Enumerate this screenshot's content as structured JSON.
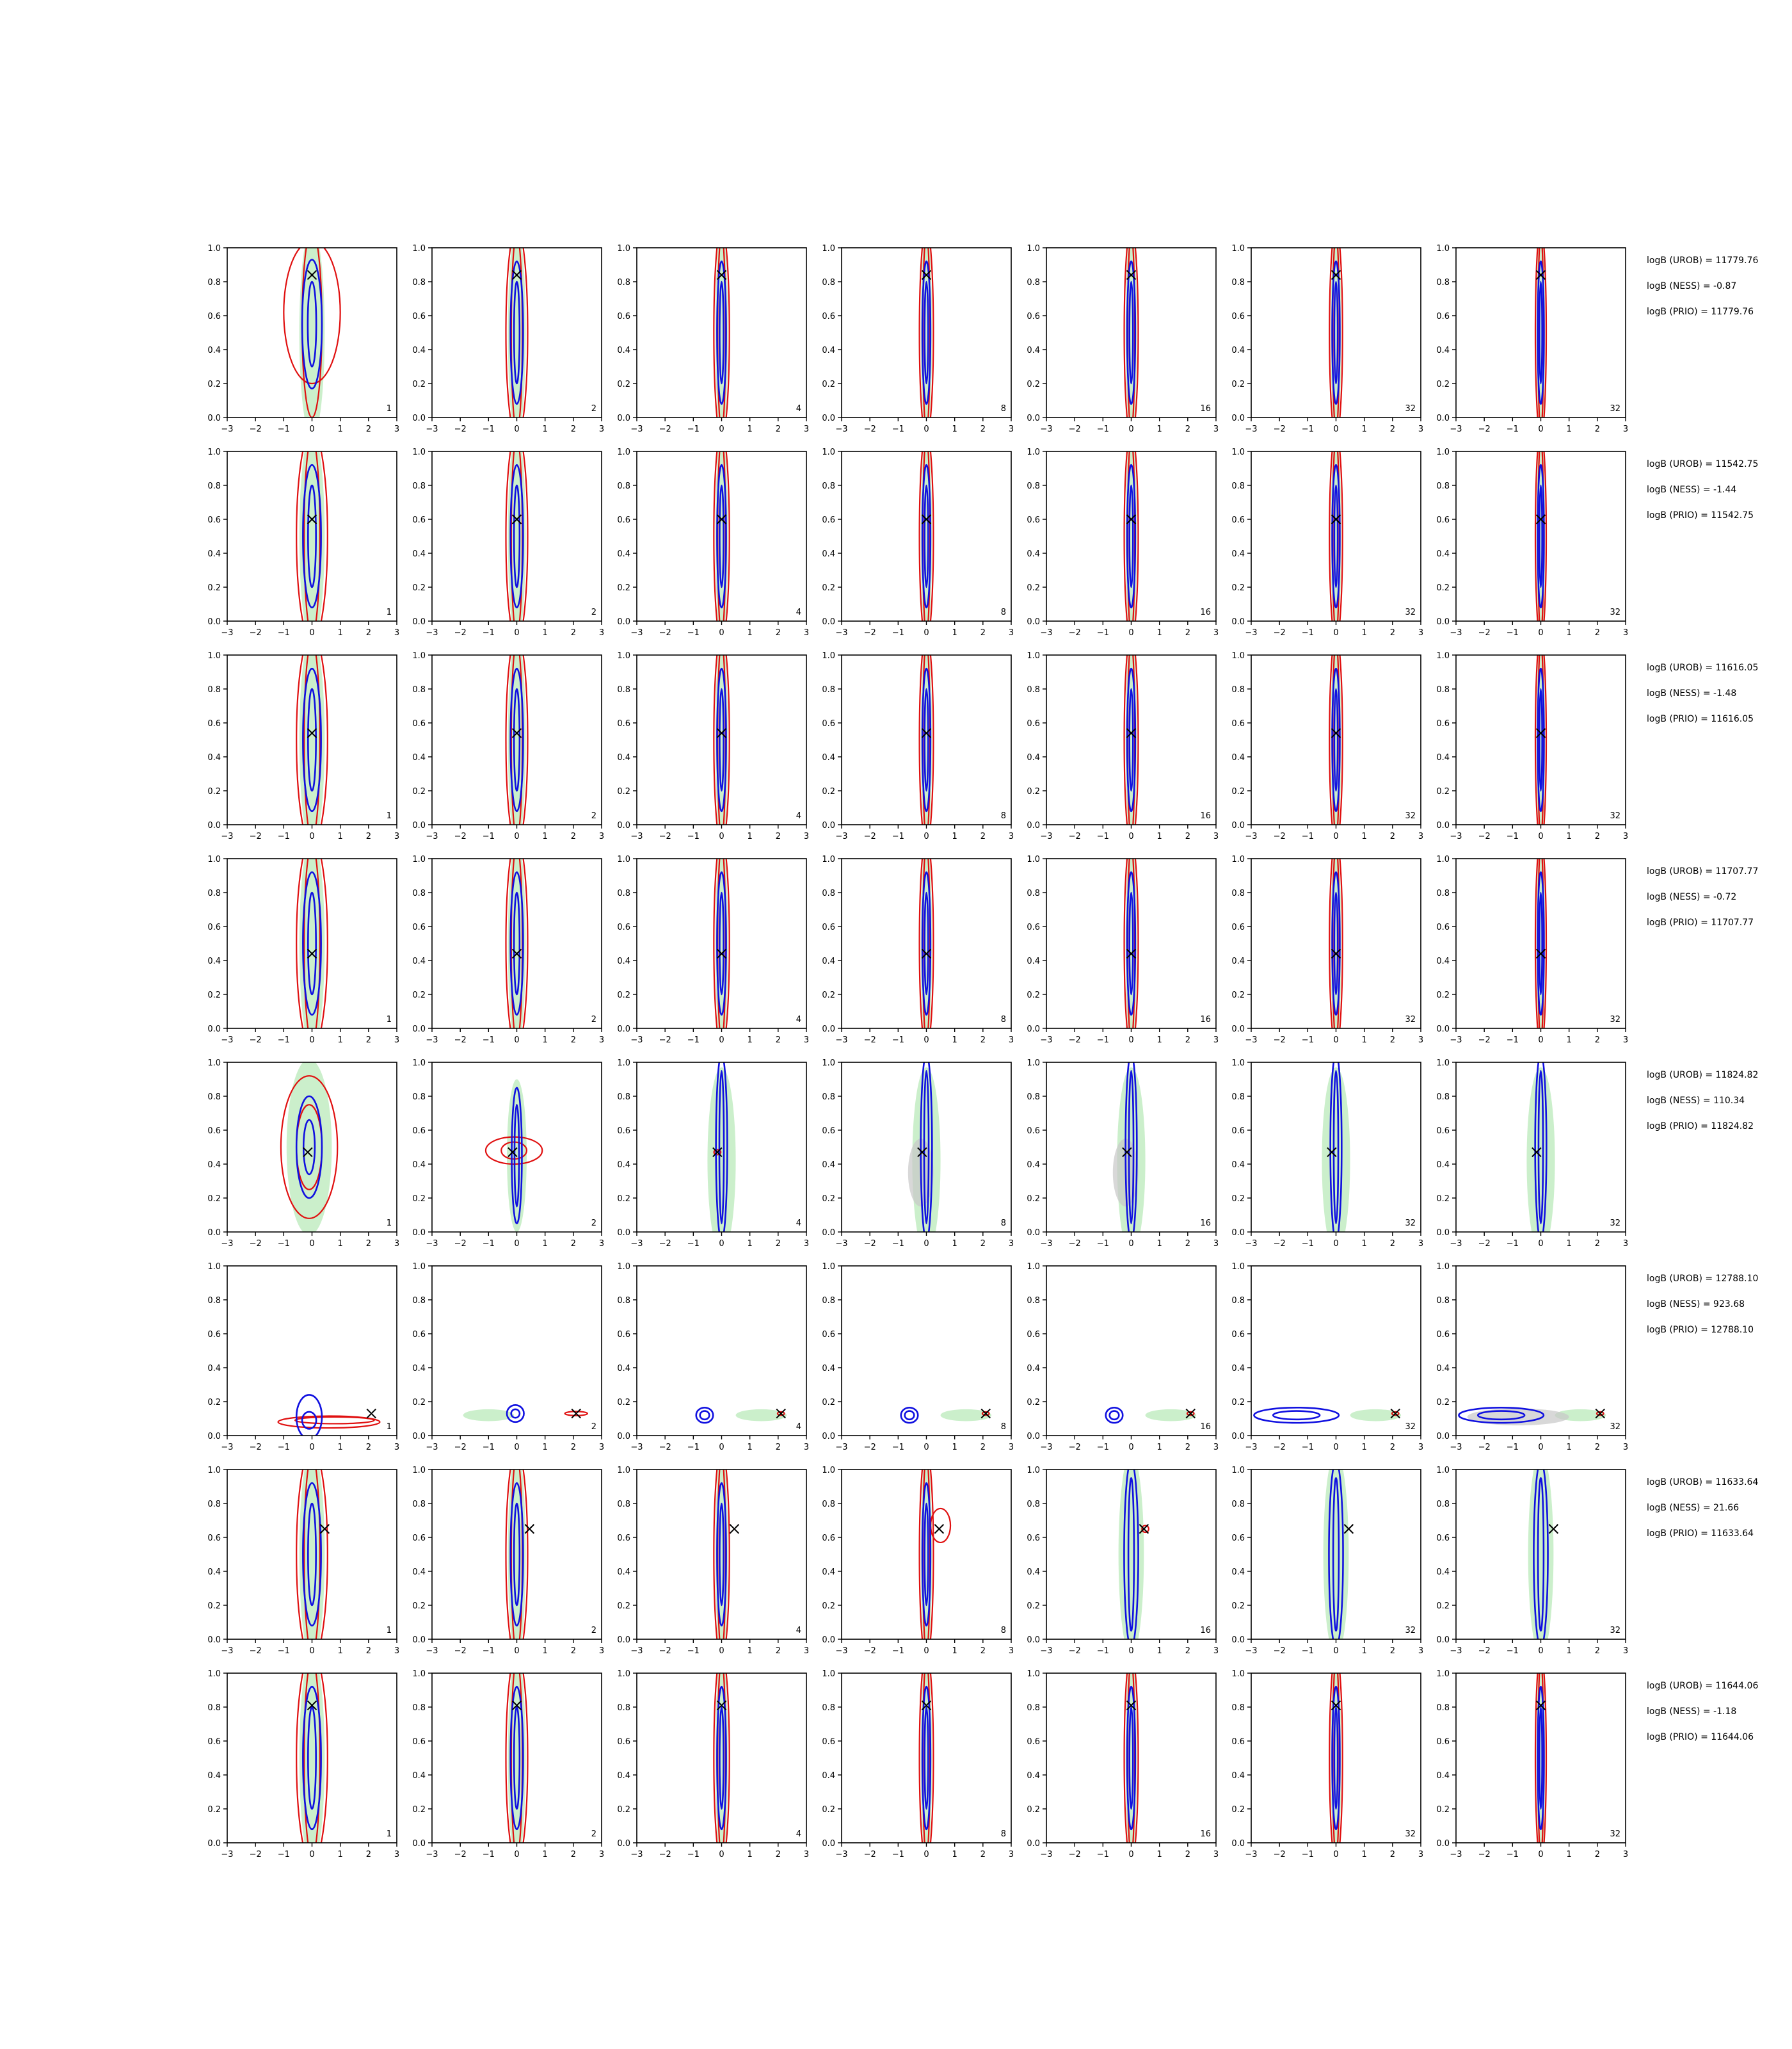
{
  "chart_data": {
    "type": "contour",
    "layout": {
      "rows": 8,
      "cols": 7
    },
    "xlim": [
      -3,
      3
    ],
    "ylim": [
      0,
      1
    ],
    "xticks": [
      "−3",
      "−2",
      "−1",
      "0",
      "1",
      "2",
      "3"
    ],
    "yticks": [
      "0.0",
      "0.2",
      "0.4",
      "0.6",
      "0.8",
      "1.0"
    ],
    "panel_labels": [
      "1",
      "2",
      "4",
      "8",
      "16",
      "32",
      "32"
    ],
    "colors": {
      "fill_green": "#b9e9b9",
      "fill_gray": "#c8c8c8",
      "contour_blue": "#1010e0",
      "contour_red": "#e01010",
      "marker": "#000000"
    },
    "rows": [
      {
        "truth": [
          0.0,
          0.84
        ],
        "stats": [
          "logB (UROB) = 11779.76",
          "logB (NESS) = -0.87",
          "logB (PRIO) = 11779.76"
        ]
      },
      {
        "truth": [
          0.0,
          0.6
        ],
        "stats": [
          "logB (UROB) = 11542.75",
          "logB (NESS) = -1.44",
          "logB (PRIO) = 11542.75"
        ]
      },
      {
        "truth": [
          0.0,
          0.54
        ],
        "stats": [
          "logB (UROB) = 11616.05",
          "logB (NESS) = -1.48",
          "logB (PRIO) = 11616.05"
        ]
      },
      {
        "truth": [
          0.0,
          0.44
        ],
        "stats": [
          "logB (UROB) = 11707.77",
          "logB (NESS) = -0.72",
          "logB (PRIO) = 11707.77"
        ]
      },
      {
        "truth": [
          -0.15,
          0.47
        ],
        "stats": [
          "logB (UROB) = 11824.82",
          "logB (NESS) = 110.34",
          "logB (PRIO) = 11824.82"
        ]
      },
      {
        "truth": [
          2.1,
          0.13
        ],
        "stats": [
          "logB (UROB) = 12788.10",
          "logB (NESS) = 923.68",
          "logB (PRIO) = 12788.10"
        ]
      },
      {
        "truth": [
          0.45,
          0.65
        ],
        "stats": [
          "logB (UROB) = 11633.64",
          "logB (NESS) = 21.66",
          "logB (PRIO) = 11633.64"
        ]
      },
      {
        "truth": [
          0.0,
          0.81
        ],
        "stats": [
          "logB (UROB) = 11644.06",
          "logB (NESS) = -1.18",
          "logB (PRIO) = 11644.06"
        ]
      }
    ]
  }
}
